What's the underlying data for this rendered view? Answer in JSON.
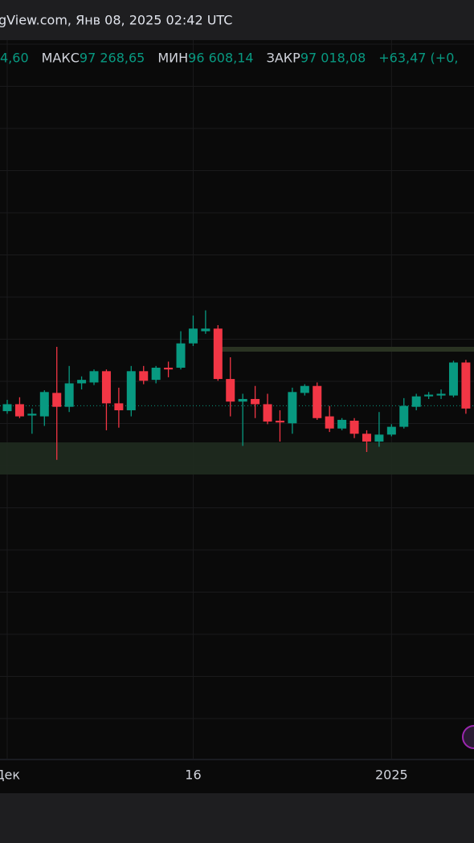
{
  "header": {
    "title": "gView.com, Янв 08, 2025 02:42 UTC",
    "ohlc": [
      {
        "label": null,
        "value": "4,60"
      },
      {
        "label": "МАКС",
        "value": "97 268,65"
      },
      {
        "label": "МИН",
        "value": "96 608,14"
      },
      {
        "label": "ЗАКР",
        "value": "97 018,08"
      },
      {
        "label": null,
        "value": "+63,47 (+0,"
      }
    ]
  },
  "chart_data": {
    "type": "candlestick",
    "categories": [
      "Дек",
      null,
      null,
      null,
      null,
      null,
      null,
      null,
      null,
      null,
      null,
      null,
      null,
      null,
      null,
      "16",
      null,
      null,
      null,
      null,
      null,
      null,
      null,
      null,
      null,
      null,
      null,
      null,
      null,
      null,
      null,
      "2025",
      null,
      null,
      null,
      null,
      null,
      null
    ],
    "open": [
      96400,
      97200,
      95900,
      95800,
      98500,
      96900,
      99600,
      99700,
      101000,
      97300,
      96500,
      101000,
      100000,
      101400,
      101400,
      104200,
      105600,
      105900,
      100100,
      97500,
      97800,
      97200,
      95300,
      95000,
      98500,
      99300,
      95800,
      94400,
      95300,
      93800,
      92900,
      93700,
      94600,
      96900,
      98100,
      98200,
      98200,
      102000
    ],
    "high": [
      97700,
      98000,
      96700,
      98800,
      103800,
      101600,
      100400,
      101200,
      101200,
      99100,
      101600,
      101600,
      101600,
      102100,
      105600,
      107400,
      108000,
      106300,
      102600,
      98400,
      99300,
      98400,
      96500,
      99100,
      99500,
      99700,
      97000,
      95600,
      95600,
      94200,
      96300,
      94900,
      97900,
      98400,
      98600,
      98900,
      102200,
      102300
    ],
    "low": [
      96100,
      95600,
      93800,
      94700,
      90800,
      96300,
      98900,
      99400,
      94200,
      94500,
      95800,
      99500,
      99600,
      100300,
      101200,
      103900,
      105300,
      99900,
      95800,
      92400,
      95600,
      94900,
      92900,
      93800,
      98200,
      95400,
      94000,
      94200,
      93300,
      91700,
      92300,
      93500,
      94400,
      96500,
      97800,
      97800,
      98000,
      96100
    ],
    "close": [
      97200,
      95800,
      96100,
      98600,
      96900,
      99600,
      100000,
      101000,
      97300,
      96500,
      101000,
      99900,
      101400,
      101200,
      104200,
      105900,
      105900,
      100100,
      97500,
      97800,
      97200,
      95200,
      95100,
      98600,
      99300,
      95600,
      94400,
      95400,
      93800,
      92900,
      93700,
      94600,
      97000,
      98100,
      98300,
      98400,
      102000,
      96700
    ],
    "price_line": 97018.08,
    "up_color": "#089981",
    "down_color": "#f23645",
    "ylim": [
      56400,
      139100
    ]
  }
}
